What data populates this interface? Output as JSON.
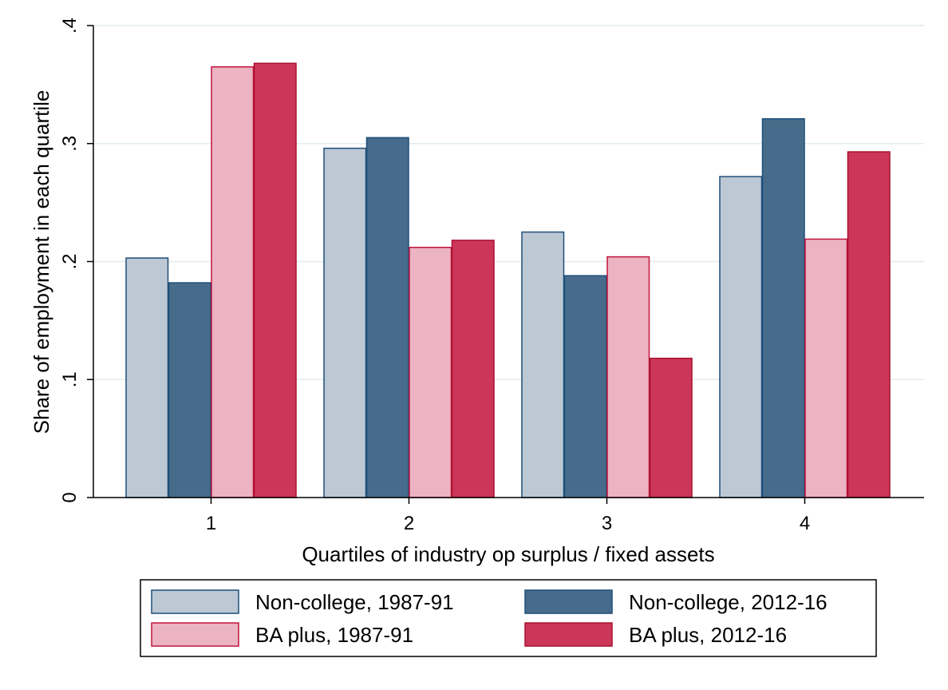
{
  "chart_data": {
    "type": "bar",
    "title": "",
    "xlabel": "Quartiles of industry op surplus / fixed assets",
    "ylabel": "Share of employment in each quartile",
    "categories": [
      "1",
      "2",
      "3",
      "4"
    ],
    "ylim": [
      0,
      0.4
    ],
    "yticks": [
      0,
      0.1,
      0.2,
      0.3,
      0.4
    ],
    "ytick_labels": [
      "0",
      ".1",
      ".2",
      ".3",
      ".4"
    ],
    "grid": true,
    "legend_position": "bottom",
    "series": [
      {
        "name": "Non-college, 1987-91",
        "values": [
          0.203,
          0.296,
          0.225,
          0.272
        ],
        "color": "#bcc8d4",
        "stroke": "#1f4e79"
      },
      {
        "name": "Non-college, 2012-16",
        "values": [
          0.182,
          0.305,
          0.188,
          0.321
        ],
        "color": "#476c8b",
        "stroke": "#1f4e79"
      },
      {
        "name": "BA plus, 1987-91",
        "values": [
          0.365,
          0.212,
          0.204,
          0.219
        ],
        "color": "#ecb3c2",
        "stroke": "#c0143c"
      },
      {
        "name": "BA plus, 2012-16",
        "values": [
          0.368,
          0.218,
          0.118,
          0.293
        ],
        "color": "#cc3659",
        "stroke": "#a8102f"
      }
    ]
  }
}
